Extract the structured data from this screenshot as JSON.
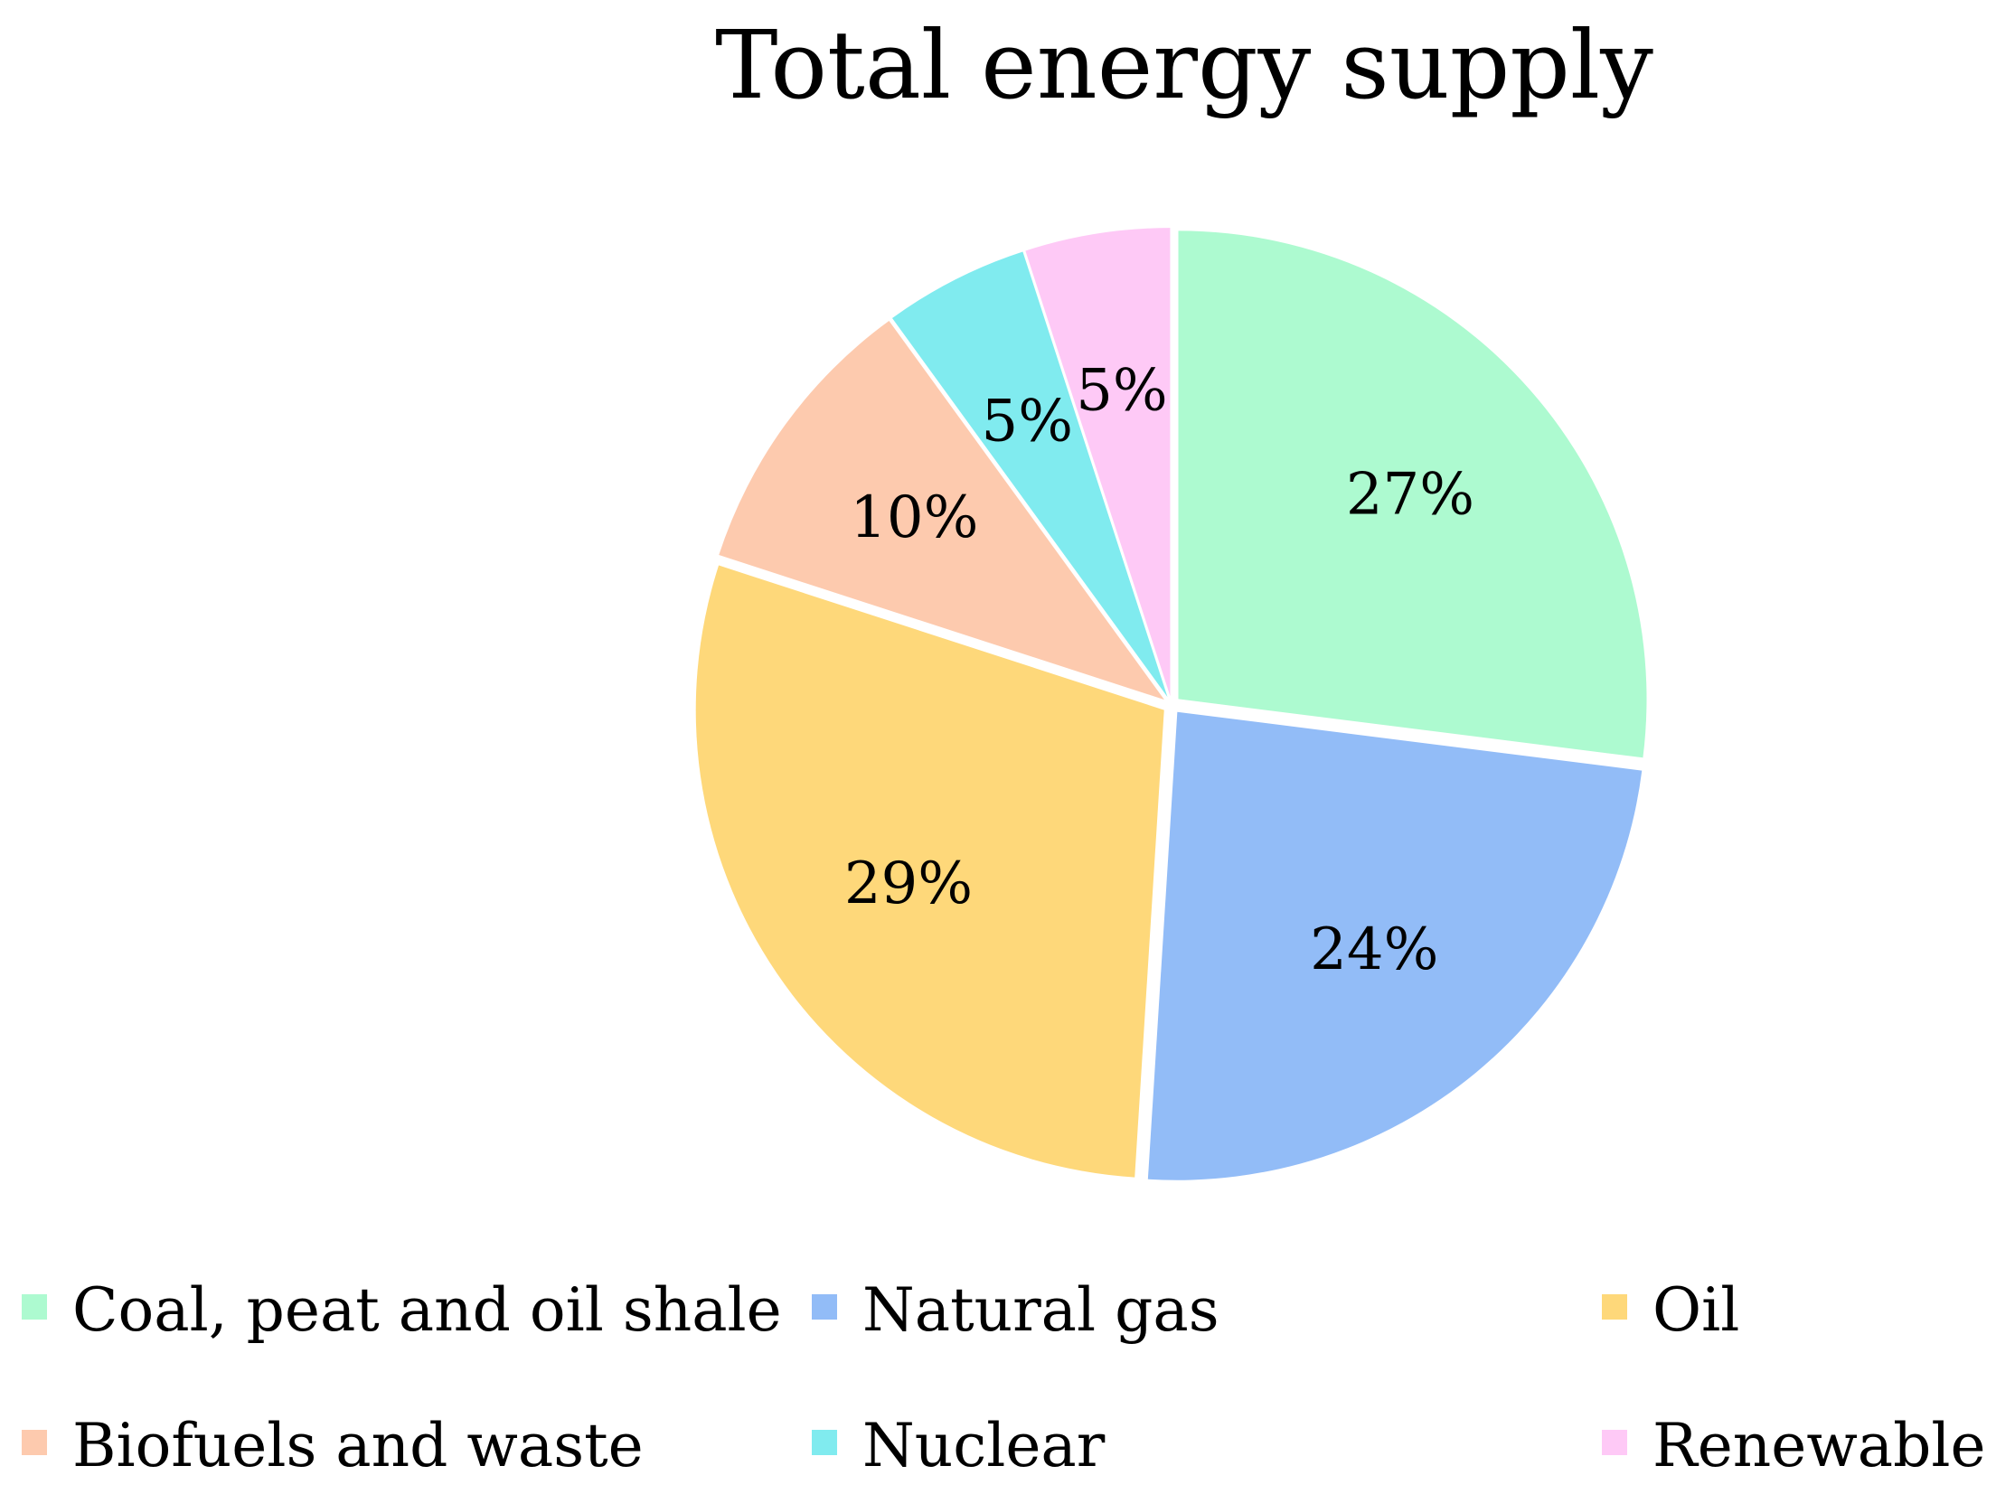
{
  "chart_data": {
    "type": "pie",
    "title": "Total energy supply",
    "start_angle_deg": 0,
    "direction": "clockwise",
    "exploded": true,
    "legend_position": "bottom",
    "slices": [
      {
        "label": "Coal, peat and oil shale",
        "value": 27,
        "display": "27%",
        "color": "#adfad0"
      },
      {
        "label": "Natural gas",
        "value": 24,
        "display": "24%",
        "color": "#92bcf7"
      },
      {
        "label": "Oil",
        "value": 29,
        "display": "29%",
        "color": "#fed87a"
      },
      {
        "label": "Biofuels and waste",
        "value": 10,
        "display": "10%",
        "color": "#fdcaae"
      },
      {
        "label": "Nuclear",
        "value": 5,
        "display": "5%",
        "color": "#80ebef"
      },
      {
        "label": "Renewable",
        "value": 5,
        "display": "5%",
        "color": "#fec9f6"
      }
    ]
  }
}
